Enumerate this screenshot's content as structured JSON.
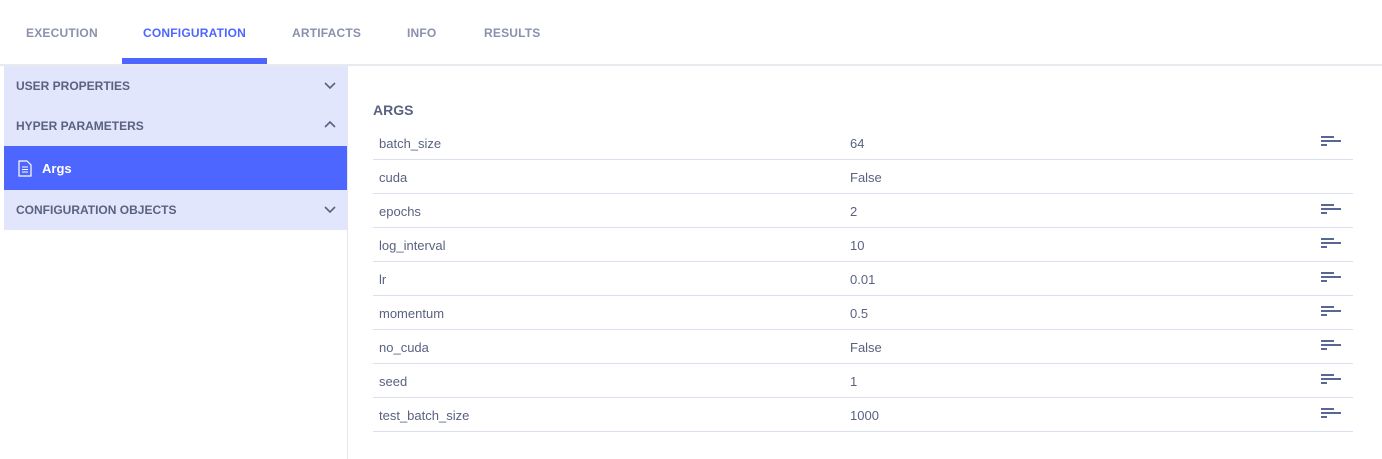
{
  "tabs": [
    {
      "label": "EXECUTION"
    },
    {
      "label": "CONFIGURATION",
      "active": true
    },
    {
      "label": "ARTIFACTS"
    },
    {
      "label": "INFO"
    },
    {
      "label": "RESULTS"
    }
  ],
  "sidebar": {
    "user_properties": "USER PROPERTIES",
    "hyper_parameters": "HYPER PARAMETERS",
    "args": "Args",
    "configuration_objects": "CONFIGURATION OBJECTS"
  },
  "main": {
    "title": "ARGS",
    "rows": [
      {
        "key": "batch_size",
        "value": "64",
        "has_description": true
      },
      {
        "key": "cuda",
        "value": "False",
        "has_description": false
      },
      {
        "key": "epochs",
        "value": "2",
        "has_description": true
      },
      {
        "key": "log_interval",
        "value": "10",
        "has_description": true
      },
      {
        "key": "lr",
        "value": "0.01",
        "has_description": true
      },
      {
        "key": "momentum",
        "value": "0.5",
        "has_description": true
      },
      {
        "key": "no_cuda",
        "value": "False",
        "has_description": true
      },
      {
        "key": "seed",
        "value": "1",
        "has_description": true
      },
      {
        "key": "test_batch_size",
        "value": "1000",
        "has_description": true
      }
    ]
  },
  "colors": {
    "accent": "#4d66ff",
    "section_bg": "#e1e6fc",
    "text": "#5a6280"
  }
}
